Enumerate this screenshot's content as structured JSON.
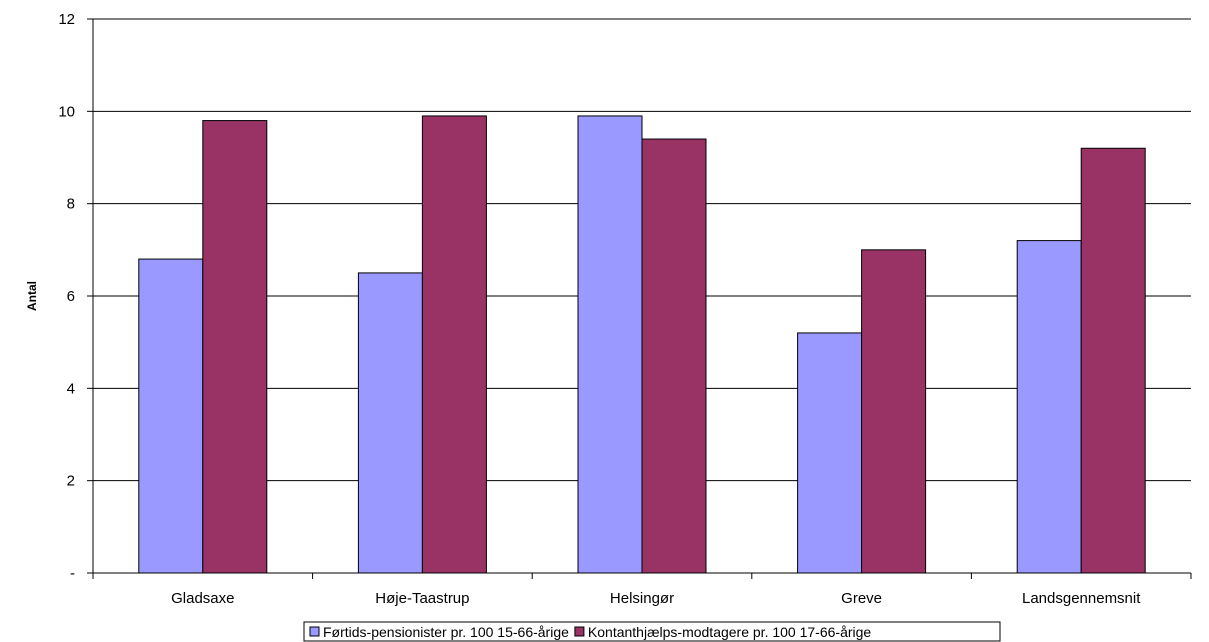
{
  "chart_data": {
    "type": "bar",
    "categories": [
      "Gladsaxe",
      "Høje-Taastrup",
      "Helsingør",
      "Greve",
      "Landsgennemsnit"
    ],
    "series": [
      {
        "name": "Førtids-pensionister pr. 100 15-66-årige",
        "color": "#9999ff",
        "values": [
          6.8,
          6.5,
          9.9,
          5.2,
          7.2
        ]
      },
      {
        "name": "Kontanthjælps-modtagere pr. 100 17-66-årige",
        "color": "#993366",
        "values": [
          9.8,
          9.9,
          9.4,
          7.0,
          9.2
        ]
      }
    ],
    "title": "",
    "xlabel": "",
    "ylabel": "Antal",
    "ylim": [
      0,
      12
    ],
    "yticks": [
      0,
      2,
      4,
      6,
      8,
      10,
      12
    ],
    "ytick_labels": [
      "-",
      "2",
      "4",
      "6",
      "8",
      "10",
      "12"
    ],
    "grid": true,
    "legend_position": "bottom"
  }
}
